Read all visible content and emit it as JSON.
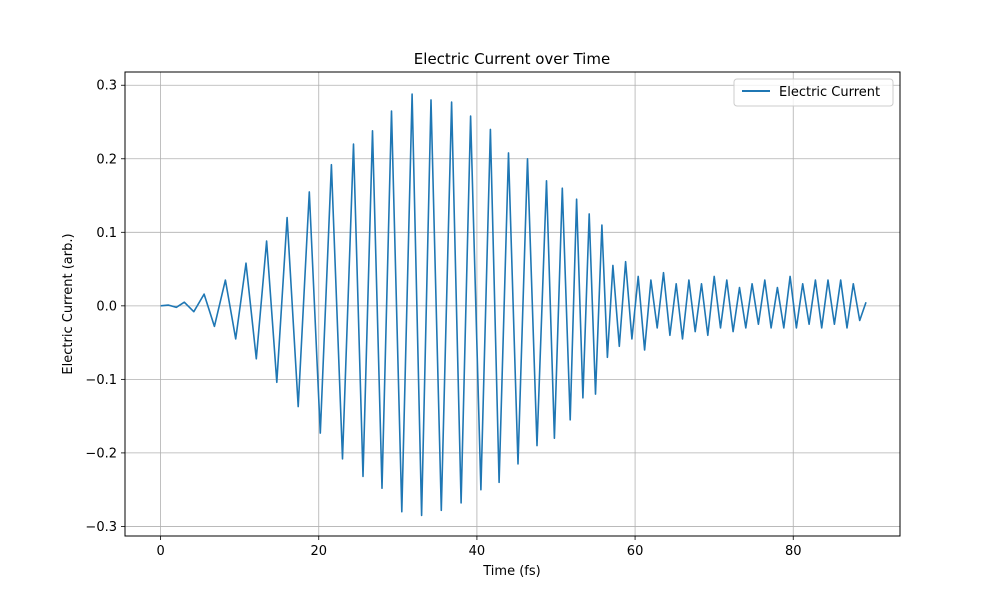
{
  "chart_data": {
    "type": "line",
    "title": "Electric Current over Time",
    "xlabel": "Time (fs)",
    "ylabel": "Electric Current (arb.)",
    "xlim": [
      -4.5,
      93.5
    ],
    "ylim": [
      -0.313,
      0.318
    ],
    "x_ticks": [
      0,
      20,
      40,
      60,
      80
    ],
    "y_ticks": [
      -0.3,
      -0.2,
      -0.1,
      0.0,
      0.1,
      0.2,
      0.3
    ],
    "x_tick_labels": [
      "0",
      "20",
      "40",
      "60",
      "80"
    ],
    "y_tick_labels": [
      "−0.3",
      "−0.2",
      "−0.1",
      "0.0",
      "0.1",
      "0.2",
      "0.3"
    ],
    "grid": true,
    "legend_position": "top-right",
    "series": [
      {
        "name": "Electric Current",
        "color": "#1f77b4",
        "x_start": 0.0,
        "x_end": 89.2,
        "points": [
          [
            0.0,
            0.0
          ],
          [
            1.0,
            0.001
          ],
          [
            2.0,
            -0.002
          ],
          [
            3.0,
            0.005
          ],
          [
            4.2,
            -0.008
          ],
          [
            5.5,
            0.016
          ],
          [
            6.8,
            -0.028
          ],
          [
            8.2,
            0.035
          ],
          [
            9.5,
            -0.045
          ],
          [
            10.8,
            0.058
          ],
          [
            12.1,
            -0.072
          ],
          [
            13.4,
            0.088
          ],
          [
            14.7,
            -0.104
          ],
          [
            16.0,
            0.12
          ],
          [
            17.4,
            -0.137
          ],
          [
            18.8,
            0.155
          ],
          [
            20.2,
            -0.173
          ],
          [
            21.6,
            0.192
          ],
          [
            23.0,
            -0.208
          ],
          [
            24.4,
            0.22
          ],
          [
            25.6,
            -0.232
          ],
          [
            26.8,
            0.238
          ],
          [
            28.0,
            -0.248
          ],
          [
            29.2,
            0.265
          ],
          [
            30.5,
            -0.28
          ],
          [
            31.8,
            0.288
          ],
          [
            33.0,
            -0.285
          ],
          [
            34.2,
            0.28
          ],
          [
            35.5,
            -0.278
          ],
          [
            36.8,
            0.277
          ],
          [
            38.0,
            -0.268
          ],
          [
            39.2,
            0.258
          ],
          [
            40.5,
            -0.25
          ],
          [
            41.7,
            0.24
          ],
          [
            42.8,
            -0.24
          ],
          [
            44.0,
            0.208
          ],
          [
            45.2,
            -0.215
          ],
          [
            46.4,
            0.2
          ],
          [
            47.6,
            -0.19
          ],
          [
            48.8,
            0.17
          ],
          [
            49.8,
            -0.18
          ],
          [
            50.8,
            0.16
          ],
          [
            51.8,
            -0.155
          ],
          [
            52.6,
            0.145
          ],
          [
            53.4,
            -0.125
          ],
          [
            54.2,
            0.125
          ],
          [
            55.0,
            -0.12
          ],
          [
            55.8,
            0.11
          ],
          [
            56.5,
            -0.07
          ],
          [
            57.2,
            0.055
          ],
          [
            58.0,
            -0.055
          ],
          [
            58.8,
            0.06
          ],
          [
            59.6,
            -0.045
          ],
          [
            60.4,
            0.04
          ],
          [
            61.2,
            -0.06
          ],
          [
            62.0,
            0.035
          ],
          [
            62.8,
            -0.03
          ],
          [
            63.6,
            0.045
          ],
          [
            64.4,
            -0.04
          ],
          [
            65.2,
            0.03
          ],
          [
            66.0,
            -0.045
          ],
          [
            66.8,
            0.035
          ],
          [
            67.6,
            -0.035
          ],
          [
            68.4,
            0.03
          ],
          [
            69.2,
            -0.04
          ],
          [
            70.0,
            0.04
          ],
          [
            70.8,
            -0.03
          ],
          [
            71.6,
            0.035
          ],
          [
            72.4,
            -0.035
          ],
          [
            73.2,
            0.025
          ],
          [
            74.0,
            -0.03
          ],
          [
            74.8,
            0.03
          ],
          [
            75.6,
            -0.025
          ],
          [
            76.4,
            0.035
          ],
          [
            77.2,
            -0.03
          ],
          [
            78.0,
            0.025
          ],
          [
            78.8,
            -0.03
          ],
          [
            79.6,
            0.04
          ],
          [
            80.4,
            -0.03
          ],
          [
            81.2,
            0.03
          ],
          [
            82.0,
            -0.025
          ],
          [
            82.8,
            0.035
          ],
          [
            83.6,
            -0.03
          ],
          [
            84.4,
            0.035
          ],
          [
            85.2,
            -0.025
          ],
          [
            86.0,
            0.035
          ],
          [
            86.8,
            -0.03
          ],
          [
            87.6,
            0.03
          ],
          [
            88.4,
            -0.02
          ],
          [
            89.2,
            0.005
          ]
        ]
      }
    ]
  }
}
